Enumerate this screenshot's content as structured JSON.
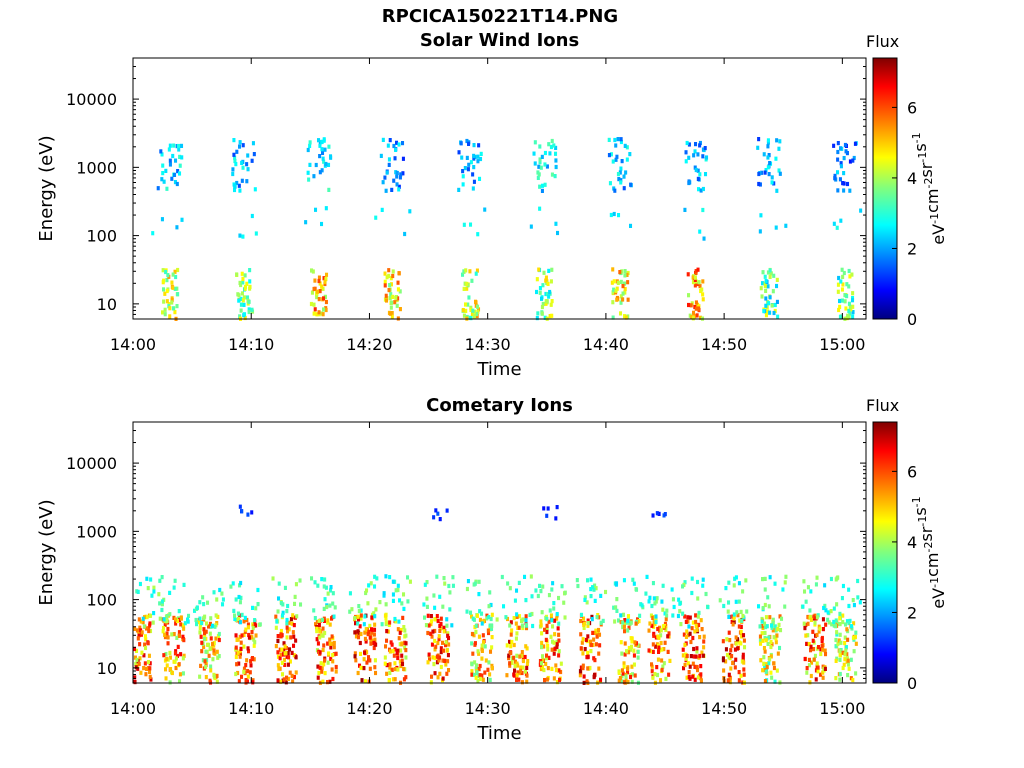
{
  "figure": {
    "title": "RPCICA150221T14.PNG"
  },
  "colorbar_title": "Flux",
  "colors": {
    "jet_low": "#00007f",
    "jet_mid": "#7fff7f",
    "jet_high": "#7f0000",
    "axes": "#000000",
    "background": "#ffffff"
  },
  "chart_data": [
    {
      "type": "heatmap",
      "title": "Solar Wind Ions",
      "xlabel": "Time",
      "ylabel": "Energy (eV)",
      "x_ticks": [
        "14:00",
        "14:10",
        "14:20",
        "14:30",
        "14:40",
        "14:50",
        "15:00"
      ],
      "y_ticks": [
        "10",
        "100",
        "1000",
        "10000"
      ],
      "y_scale": "log",
      "ylim": [
        6,
        40000
      ],
      "xlim": [
        "14:00",
        "15:02"
      ],
      "colorbar": {
        "label": "eV-1cm-2sr-1s-1",
        "ticks": [
          "0",
          "2",
          "4",
          "6"
        ],
        "range": [
          0,
          7.4
        ],
        "colormap": "jet"
      },
      "clusters": [
        {
          "t": 3.0,
          "low_flux": 5.6,
          "high_flux": 3.2
        },
        {
          "t": 9.3,
          "low_flux": 5.0,
          "high_flux": 3.0
        },
        {
          "t": 15.6,
          "low_flux": 6.2,
          "high_flux": 3.4
        },
        {
          "t": 21.8,
          "low_flux": 6.0,
          "high_flux": 2.8
        },
        {
          "t": 28.4,
          "low_flux": 5.5,
          "high_flux": 2.9
        },
        {
          "t": 34.7,
          "low_flux": 5.0,
          "high_flux": 3.5
        },
        {
          "t": 41.1,
          "low_flux": 5.8,
          "high_flux": 3.1
        },
        {
          "t": 47.5,
          "low_flux": 6.4,
          "high_flux": 3.0
        },
        {
          "t": 53.7,
          "low_flux": 4.6,
          "high_flux": 2.9
        },
        {
          "t": 60.1,
          "low_flux": 4.8,
          "high_flux": 2.6
        }
      ]
    },
    {
      "type": "heatmap",
      "title": "Cometary Ions",
      "xlabel": "Time",
      "ylabel": "Energy (eV)",
      "x_ticks": [
        "14:00",
        "14:10",
        "14:20",
        "14:30",
        "14:40",
        "14:50",
        "15:00"
      ],
      "y_ticks": [
        "10",
        "100",
        "1000",
        "10000"
      ],
      "y_scale": "log",
      "ylim": [
        6,
        40000
      ],
      "xlim": [
        "14:00",
        "15:02"
      ],
      "colorbar": {
        "label": "eV-1cm-2sr-1s-1",
        "ticks": [
          "0",
          "2",
          "4",
          "6"
        ],
        "range": [
          0,
          7.4
        ],
        "colormap": "jet"
      },
      "clusters": [
        {
          "t": 0.5,
          "low_flux": 7.0
        },
        {
          "t": 3.3,
          "low_flux": 6.6
        },
        {
          "t": 6.3,
          "low_flux": 6.4
        },
        {
          "t": 9.4,
          "low_flux": 6.8
        },
        {
          "t": 12.8,
          "low_flux": 7.2
        },
        {
          "t": 16.2,
          "low_flux": 7.0
        },
        {
          "t": 19.5,
          "low_flux": 7.3
        },
        {
          "t": 22.1,
          "low_flux": 6.9
        },
        {
          "t": 25.7,
          "low_flux": 7.2
        },
        {
          "t": 29.4,
          "low_flux": 6.2
        },
        {
          "t": 32.4,
          "low_flux": 7.0
        },
        {
          "t": 35.2,
          "low_flux": 6.8
        },
        {
          "t": 38.6,
          "low_flux": 7.2
        },
        {
          "t": 41.8,
          "low_flux": 6.4
        },
        {
          "t": 44.4,
          "low_flux": 6.9
        },
        {
          "t": 47.3,
          "low_flux": 7.1
        },
        {
          "t": 50.7,
          "low_flux": 7.2
        },
        {
          "t": 53.8,
          "low_flux": 5.8
        },
        {
          "t": 57.6,
          "low_flux": 6.9
        },
        {
          "t": 60.2,
          "low_flux": 5.8
        }
      ]
    }
  ]
}
